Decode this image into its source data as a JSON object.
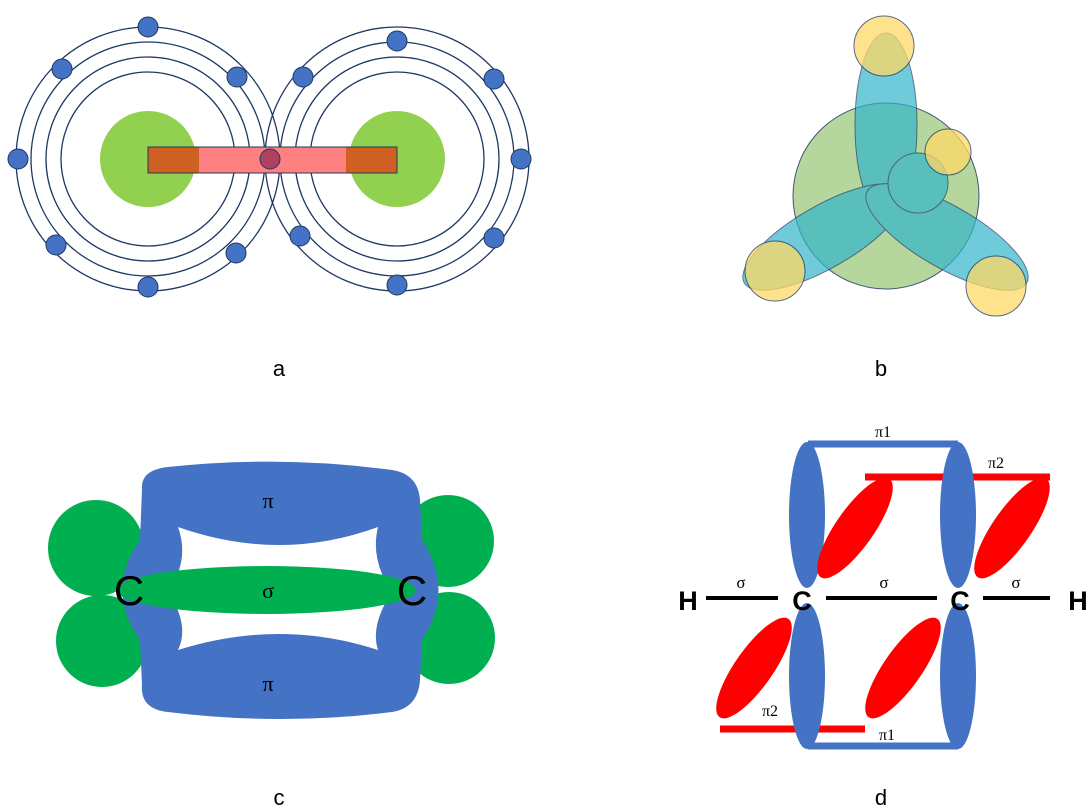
{
  "panels": [
    {
      "caption": "a"
    },
    {
      "caption": "b"
    },
    {
      "caption": "c",
      "labels": {
        "pi_top": "π",
        "sigma": "σ",
        "pi_bottom": "π",
        "atom_left": "C",
        "atom_right": "C"
      }
    },
    {
      "caption": "d",
      "labels": {
        "atom_h_left": "H",
        "atom_c_left": "C",
        "atom_c_right": "C",
        "atom_h_right": "H",
        "sigma_hc": "σ",
        "sigma_cc": "σ",
        "sigma_ch": "σ",
        "pi1_top": "π1",
        "pi2_top": "π2",
        "pi2_bottom": "π2",
        "pi1_bottom": "π1"
      }
    }
  ],
  "colors": {
    "orbit_stroke": "#1f3864",
    "electron": "#4472c4",
    "nucleus": "#92d050",
    "bond_rect": "#ff8080",
    "overlap": "#c55a11",
    "hybrid_lobe": "#33b5c9",
    "big_sphere": "#a9d18e",
    "h_sphere": "#ffd966",
    "pi_blue": "#4472c4",
    "sigma_green": "#00b050",
    "pi_red": "#ff0000"
  }
}
